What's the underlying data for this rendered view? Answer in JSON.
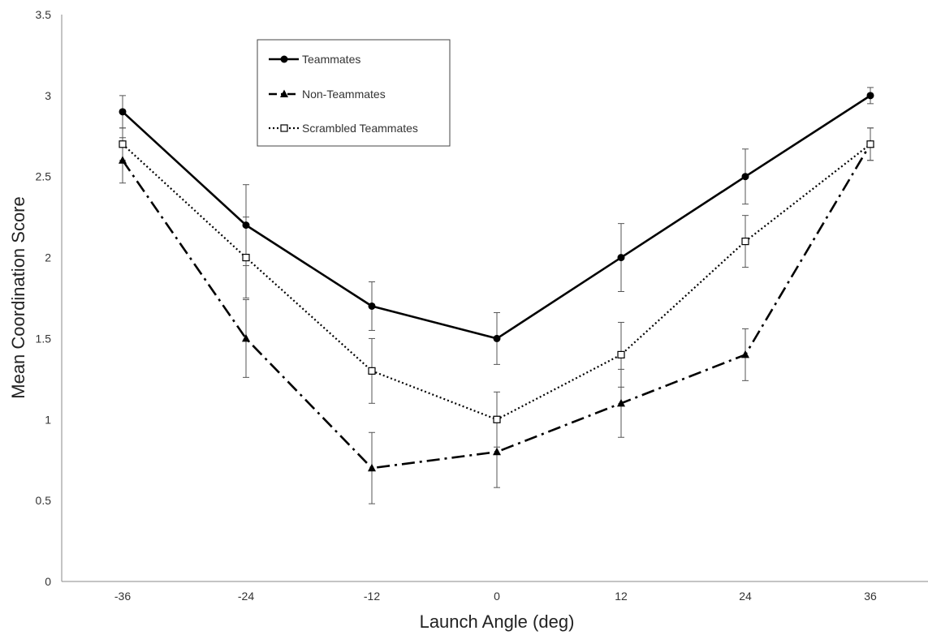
{
  "chart_data": {
    "type": "line",
    "xlabel": "Launch Angle (deg)",
    "ylabel": "Mean Coordination Score",
    "x": [
      -36,
      -24,
      -12,
      0,
      12,
      24,
      36
    ],
    "x_tick_labels": [
      "-36",
      "-24",
      "-12",
      "0",
      "12",
      "24",
      "36"
    ],
    "ylim": [
      0,
      3.5
    ],
    "y_ticks": [
      0,
      0.5,
      1,
      1.5,
      2,
      2.5,
      3,
      3.5
    ],
    "y_tick_labels": [
      "0",
      "0.5",
      "1",
      "1.5",
      "2",
      "2.5",
      "3",
      "3.5"
    ],
    "grid": false,
    "legend_position": "top-left",
    "series": [
      {
        "name": "Teammates",
        "values": [
          2.9,
          2.2,
          1.7,
          1.5,
          2.0,
          2.5,
          3.0
        ],
        "errors": [
          0.1,
          0.25,
          0.15,
          0.16,
          0.21,
          0.17,
          0.05
        ],
        "line_style": "solid",
        "marker": "circle",
        "color": "#000000"
      },
      {
        "name": "Non-Teammates",
        "values": [
          2.6,
          1.5,
          0.7,
          0.8,
          1.1,
          1.4,
          2.7
        ],
        "errors": [
          0.14,
          0.24,
          0.22,
          0.22,
          0.21,
          0.16,
          0.1
        ],
        "line_style": "dashdot",
        "marker": "triangle",
        "color": "#000000"
      },
      {
        "name": "Scrambled Teammates",
        "values": [
          2.7,
          2.0,
          1.3,
          1.0,
          1.4,
          2.1,
          2.7
        ],
        "errors": [
          0.1,
          0.25,
          0.2,
          0.17,
          0.2,
          0.16,
          0.1
        ],
        "line_style": "dotted",
        "marker": "open-square",
        "color": "#000000"
      }
    ]
  }
}
